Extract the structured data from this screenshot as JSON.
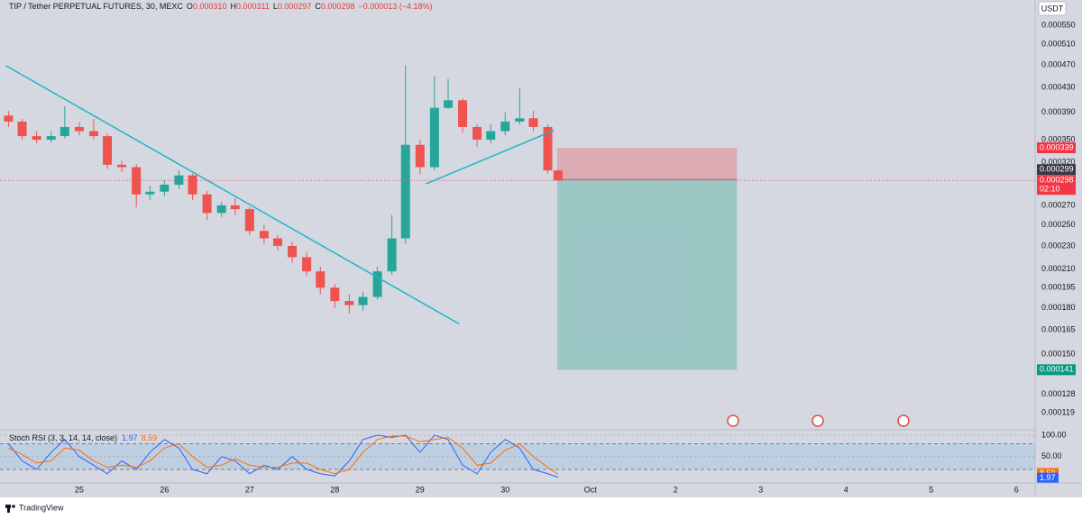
{
  "chart_data": [
    {
      "type": "candlestick",
      "title": "TIP / Tether PERPETUAL FUTURES, 30, MEXC",
      "ohlc_legend": [
        {
          "key": "O",
          "value": "0.000310"
        },
        {
          "key": "H",
          "value": "0.000311"
        },
        {
          "key": "L",
          "value": "0.000297"
        },
        {
          "key": "C",
          "value": "0.000298"
        }
      ],
      "change": "−0.000013 (−4.18%)",
      "currency": "USDT",
      "countdown": "02:10",
      "x": [
        24.17,
        24.33,
        24.5,
        24.67,
        24.83,
        25.0,
        25.17,
        25.33,
        25.5,
        25.67,
        25.83,
        26.0,
        26.17,
        26.33,
        26.5,
        26.67,
        26.83,
        27.0,
        27.17,
        27.33,
        27.5,
        27.67,
        27.83,
        28.0,
        28.17,
        28.33,
        28.5,
        28.67,
        28.83,
        29.0,
        29.17,
        29.33,
        29.5,
        29.67,
        29.83,
        30.0,
        30.17,
        30.33,
        30.5,
        30.62
      ],
      "open": [
        0.000385,
        0.000376,
        0.000355,
        0.00035,
        0.000355,
        0.000368,
        0.000362,
        0.000355,
        0.000317,
        0.000314,
        0.000282,
        0.000285,
        0.000293,
        0.000304,
        0.000282,
        0.000262,
        0.00027,
        0.000266,
        0.000244,
        0.000237,
        0.00023,
        0.00022,
        0.000208,
        0.000195,
        0.000185,
        0.000182,
        0.000188,
        0.000208,
        0.000237,
        0.000343,
        0.000314,
        0.000397,
        0.000409,
        0.000368,
        0.00035,
        0.000362,
        0.000376,
        0.000381,
        0.000368,
        0.00031
      ],
      "high": [
        0.000392,
        0.00038,
        0.000362,
        0.000362,
        0.0004,
        0.000375,
        0.00038,
        0.000358,
        0.000322,
        0.000318,
        0.000292,
        0.000298,
        0.00031,
        0.000306,
        0.000286,
        0.000274,
        0.000278,
        0.000268,
        0.00025,
        0.00024,
        0.000234,
        0.000224,
        0.000212,
        0.000198,
        0.00019,
        0.000192,
        0.000212,
        0.00026,
        0.00047,
        0.00035,
        0.00045,
        0.000445,
        0.000412,
        0.000372,
        0.000372,
        0.00039,
        0.00043,
        0.000392,
        0.000372,
        0.000311
      ],
      "low": [
        0.000368,
        0.00035,
        0.000345,
        0.000346,
        0.000352,
        0.000356,
        0.00035,
        0.000312,
        0.000308,
        0.000268,
        0.000276,
        0.00028,
        0.000288,
        0.000276,
        0.000255,
        0.000258,
        0.00026,
        0.00024,
        0.000232,
        0.000226,
        0.000215,
        0.000204,
        0.00019,
        0.00018,
        0.000176,
        0.000178,
        0.000186,
        0.000205,
        0.000232,
        0.000305,
        0.00031,
        0.000395,
        0.00036,
        0.00034,
        0.000345,
        0.000356,
        0.000372,
        0.000362,
        0.000306,
        0.000297
      ],
      "close": [
        0.000376,
        0.000355,
        0.00035,
        0.000355,
        0.000368,
        0.000362,
        0.000355,
        0.000317,
        0.000314,
        0.000282,
        0.000285,
        0.000293,
        0.000304,
        0.000282,
        0.000262,
        0.00027,
        0.000266,
        0.000244,
        0.000237,
        0.00023,
        0.00022,
        0.000208,
        0.000195,
        0.000185,
        0.000182,
        0.000188,
        0.000208,
        0.000237,
        0.000343,
        0.000314,
        0.000397,
        0.000409,
        0.000368,
        0.00035,
        0.000362,
        0.000376,
        0.000381,
        0.000368,
        0.00031,
        0.000298
      ],
      "up_color": "#26a69a",
      "down_color": "#ef5350",
      "log_scale": true,
      "xlim": [
        24.07,
        36.22
      ],
      "xticks": [
        25,
        26,
        27,
        28,
        29,
        30,
        {
          "value": 31,
          "label": "Oct"
        },
        {
          "value": 32,
          "label": "2"
        },
        {
          "value": 33,
          "label": "3"
        },
        {
          "value": 34,
          "label": "4"
        },
        {
          "value": 35,
          "label": "5"
        },
        {
          "value": 36,
          "label": "6"
        }
      ],
      "ylim": [
        0.0001116,
        0.000608
      ],
      "yticks": [
        {
          "value": 0.00055,
          "label": "0.000550"
        },
        {
          "value": 0.00051,
          "label": "0.000510"
        },
        {
          "value": 0.00047,
          "label": "0.000470"
        },
        {
          "value": 0.00043,
          "label": "0.000430"
        },
        {
          "value": 0.00039,
          "label": "0.000390"
        },
        {
          "value": 0.00035,
          "label": "0.000350"
        },
        {
          "value": 0.00032,
          "label": "0.000320"
        },
        {
          "value": 0.00027,
          "label": "0.000270"
        },
        {
          "value": 0.00025,
          "label": "0.000250"
        },
        {
          "value": 0.00023,
          "label": "0.000230"
        },
        {
          "value": 0.00021,
          "label": "0.000210"
        },
        0.000195,
        {
          "value": 0.00018,
          "label": "0.000180"
        },
        0.000165,
        {
          "value": 0.00015,
          "label": "0.000150"
        },
        0.000128,
        0.000119
      ],
      "grid": false,
      "position": {
        "x": [
          30.61,
          32.72
        ],
        "entry": 0.000299,
        "stop": 0.000339,
        "target": 0.000141
      },
      "trendlines": [
        {
          "x": [
            24.14,
            29.46
          ],
          "y": [
            0.000469,
            0.000169
          ],
          "color": "#1fb5c9"
        },
        {
          "x": [
            29.07,
            30.57
          ],
          "y": [
            0.000294,
            0.000363
          ],
          "color": "#1fb5c9"
        }
      ]
    },
    {
      "type": "line",
      "title": "Stoch RSI (3, 3, 14, 14, close)",
      "series": [
        {
          "color": "#2962ff",
          "values": [
            80,
            40,
            20,
            60,
            90,
            50,
            30,
            10,
            40,
            20,
            60,
            90,
            70,
            20,
            10,
            50,
            40,
            10,
            30,
            20,
            50,
            20,
            10,
            5,
            40,
            90,
            100,
            95,
            100,
            60,
            100,
            90,
            30,
            10,
            60,
            90,
            70,
            20,
            10,
            1.97
          ]
        },
        {
          "color": "#ff6d00",
          "values": [
            70,
            55,
            35,
            40,
            70,
            65,
            40,
            25,
            30,
            25,
            40,
            70,
            80,
            50,
            25,
            30,
            45,
            30,
            25,
            25,
            35,
            35,
            20,
            10,
            20,
            60,
            90,
            98,
            98,
            85,
            90,
            95,
            70,
            30,
            35,
            65,
            80,
            50,
            25,
            8.59
          ]
        }
      ],
      "ylim": [
        -11.5,
        110.6
      ],
      "yticks": [
        {
          "value": 100,
          "label": "100.00"
        },
        {
          "value": 50,
          "label": "50.00"
        }
      ],
      "bands": [
        80,
        20
      ]
    }
  ],
  "footer": "TradingView"
}
